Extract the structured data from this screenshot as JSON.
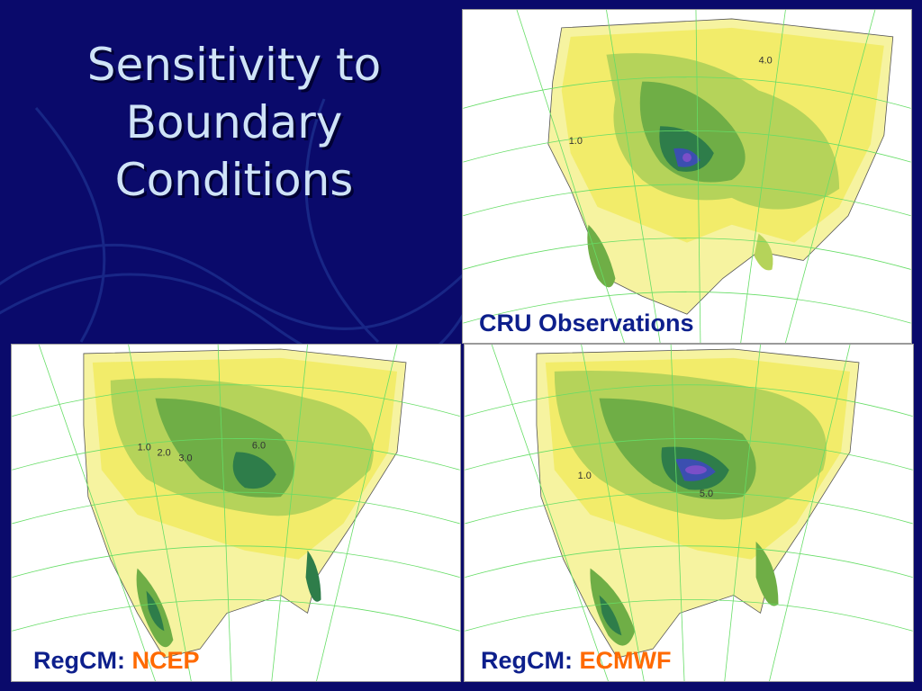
{
  "slide": {
    "title_lines": [
      "Sensitivity to",
      "Boundary",
      "Conditions"
    ]
  },
  "panels": [
    {
      "caption": "CRU Observations",
      "contour_labels": [
        "4.0",
        "1.0"
      ]
    },
    {
      "caption_prefix": "RegCM: ",
      "caption_highlight": "NCEP",
      "contour_labels": [
        "1.0",
        "2.0",
        "3.0",
        "6.0"
      ]
    },
    {
      "caption_prefix": "RegCM: ",
      "caption_highlight": "ECMWF",
      "contour_labels": [
        "1.0",
        "5.0"
      ]
    }
  ],
  "colors": {
    "background": "#0a0a6b",
    "title": "#cfe3f7",
    "caption": "#0d1f8c",
    "caption_highlight": "#ff6a00",
    "grid": "#66dd66",
    "yellow": "#f2ec6a",
    "light_green": "#b5d35a",
    "green": "#6fae46",
    "dark_green": "#2e7d4a",
    "blue": "#3b4fb0",
    "violet": "#7a4fc8"
  }
}
